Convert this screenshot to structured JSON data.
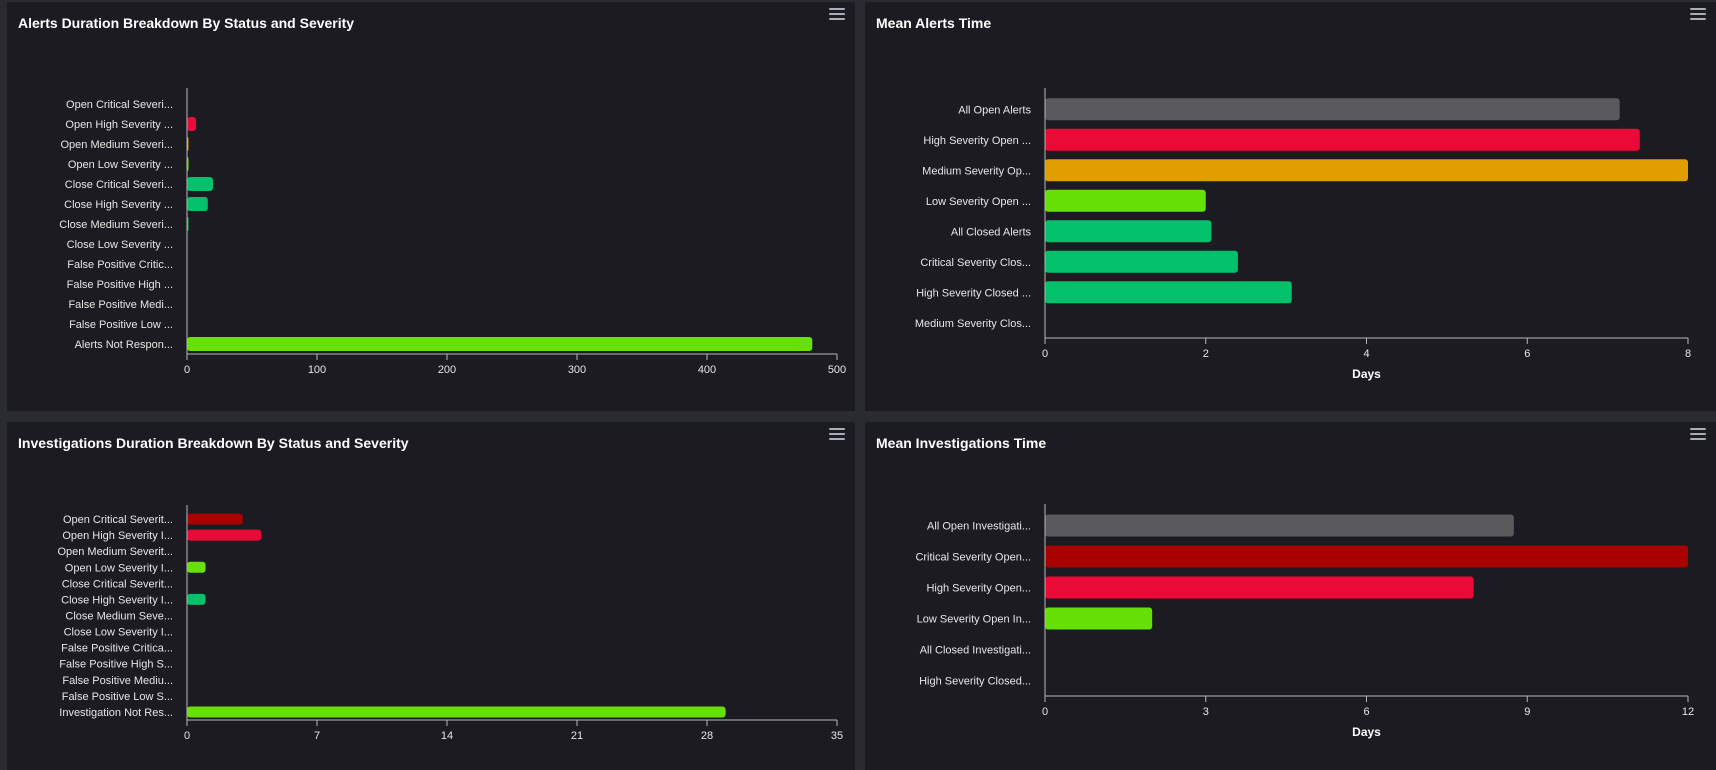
{
  "colors": {
    "grey": "#5a5a5c",
    "critical": "#a90000",
    "high": "#ea0a37",
    "medium": "#e09e00",
    "low": "#66e005",
    "closed": "#03c06a",
    "axis": "#b8b8b8",
    "text": "#e6e6e6"
  },
  "panels": {
    "alerts_breakdown": {
      "title": "Alerts Duration Breakdown By Status and Severity"
    },
    "mean_alerts": {
      "title": "Mean Alerts Time"
    },
    "investigations_breakdown": {
      "title": "Investigations Duration Breakdown By Status and Severity"
    },
    "mean_investigations": {
      "title": "Mean Investigations Time"
    }
  },
  "chart_data": [
    {
      "type": "bar",
      "orientation": "horizontal",
      "title": "Alerts Duration Breakdown By Status and Severity",
      "categories": [
        "Open Critical Severi...",
        "Open High Severity ...",
        "Open Medium Severi...",
        "Open Low Severity ...",
        "Close Critical Severi...",
        "Close High Severity ...",
        "Close Medium Severi...",
        "Close Low Severity ...",
        "False Positive Critic...",
        "False Positive High ...",
        "False Positive Medi...",
        "False Positive Low ...",
        "Alerts Not Respon..."
      ],
      "values": [
        0,
        7,
        1,
        1,
        20,
        16,
        1,
        0,
        0,
        0,
        0,
        0,
        481
      ],
      "bar_colors": [
        "critical",
        "high",
        "medium",
        "low",
        "closed",
        "closed",
        "closed",
        "closed",
        "closed",
        "closed",
        "closed",
        "closed",
        "low"
      ],
      "xticks": [
        "0",
        "100",
        "200",
        "300",
        "400",
        "500"
      ],
      "xlim": [
        0,
        500
      ],
      "xlabel": "",
      "grid": false
    },
    {
      "type": "bar",
      "orientation": "horizontal",
      "title": "Mean Alerts Time",
      "categories": [
        "All Open Alerts",
        "High Severity Open ...",
        "Medium Severity Op...",
        "Low Severity Open ...",
        "All Closed Alerts",
        "Critical Severity Clos...",
        "High Severity Closed ...",
        "Medium Severity Clos..."
      ],
      "values": [
        7.15,
        7.4,
        8.0,
        2.0,
        2.07,
        2.4,
        3.07,
        0
      ],
      "bar_colors": [
        "grey",
        "high",
        "medium",
        "low",
        "closed",
        "closed",
        "closed",
        "closed"
      ],
      "xticks": [
        "0",
        "2",
        "4",
        "6",
        "8"
      ],
      "xlim": [
        0,
        8
      ],
      "xlabel": "Days",
      "grid": false
    },
    {
      "type": "bar",
      "orientation": "horizontal",
      "title": "Investigations Duration Breakdown By Status and Severity",
      "categories": [
        "Open Critical Severit...",
        "Open High Severity I...",
        "Open Medium Severit...",
        "Open Low Severity I...",
        "Close Critical Severit...",
        "Close High Severity I...",
        "Close Medium Seve...",
        "Close Low Severity I...",
        "False Positive Critica...",
        "False Positive High S...",
        "False Positive Mediu...",
        "False Positive Low S...",
        "Investigation Not Res..."
      ],
      "values": [
        3,
        4,
        0,
        1,
        0,
        1,
        0,
        0,
        0,
        0,
        0,
        0,
        29
      ],
      "bar_colors": [
        "critical",
        "high",
        "medium",
        "low",
        "closed",
        "closed",
        "closed",
        "closed",
        "closed",
        "closed",
        "closed",
        "closed",
        "low"
      ],
      "xticks": [
        "0",
        "7",
        "14",
        "21",
        "28",
        "35"
      ],
      "xlim": [
        0,
        35
      ],
      "xlabel": "",
      "grid": false
    },
    {
      "type": "bar",
      "orientation": "horizontal",
      "title": "Mean Investigations Time",
      "categories": [
        "All Open Investigati...",
        "Critical Severity Open...",
        "High Severity Open...",
        "Low Severity Open In...",
        "All Closed Investigati...",
        "High Severity Closed..."
      ],
      "values": [
        8.75,
        12,
        8,
        2,
        0,
        0
      ],
      "bar_colors": [
        "grey",
        "critical",
        "high",
        "low",
        "closed",
        "closed"
      ],
      "xticks": [
        "0",
        "3",
        "6",
        "9",
        "12"
      ],
      "xlim": [
        0,
        12
      ],
      "xlabel": "Days",
      "grid": false
    }
  ]
}
